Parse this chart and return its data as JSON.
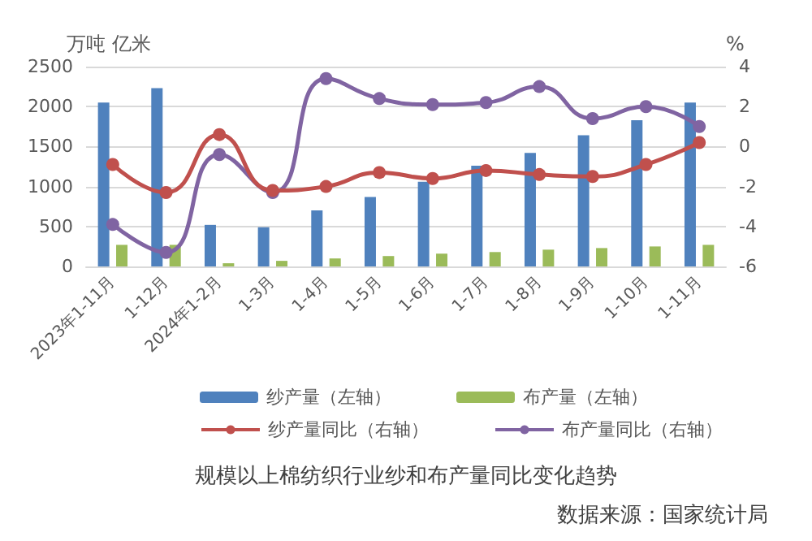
{
  "chart_data": {
    "type": "bar",
    "title": "规模以上棉纺织行业纱和布产量同比变化趋势",
    "ylabel": "万吨 亿米",
    "y2label": "%",
    "annotations": [
      "数据来源：国家统计局"
    ],
    "categories": [
      "2023年1-11月",
      "1-12月",
      "2024年1-2月",
      "1-3月",
      "1-4月",
      "1-5月",
      "1-6月",
      "1-7月",
      "1-8月",
      "1-9月",
      "1-10月",
      "1-11月"
    ],
    "series": [
      {
        "name": "纱产量（左轴）",
        "color": "#4f81bd",
        "values": [
          2050,
          2230,
          520,
          490,
          700,
          870,
          1060,
          1260,
          1420,
          1640,
          1830,
          2050
        ]
      },
      {
        "name": "布产量（左轴）",
        "color": "#9bbb59",
        "values": [
          270,
          270,
          40,
          70,
          100,
          130,
          160,
          180,
          210,
          230,
          250,
          270
        ]
      },
      {
        "name": "纱产量同比（右轴）",
        "type": "line",
        "axis": "y2",
        "color": "#c0504d",
        "values": [
          -0.9,
          -2.3,
          0.6,
          -2.2,
          -2.0,
          -1.3,
          -1.6,
          -1.2,
          -1.4,
          -1.5,
          -0.9,
          0.2
        ]
      },
      {
        "name": "布产量同比（右轴）",
        "type": "line",
        "axis": "y2",
        "color": "#8064a2",
        "values": [
          -3.9,
          -5.3,
          -0.4,
          -2.3,
          3.4,
          2.4,
          2.1,
          2.2,
          3.0,
          1.4,
          2.0,
          1.0
        ]
      }
    ],
    "ylim": [
      0,
      2500
    ],
    "yticks": [
      0,
      500,
      1000,
      1500,
      2000,
      2500
    ],
    "y2lim": [
      -6,
      4
    ],
    "y2ticks": [
      -6,
      -4,
      -2,
      0,
      2,
      4
    ],
    "grid": "y",
    "legend": "bottom",
    "marker": "circle",
    "line_style": "solid"
  }
}
